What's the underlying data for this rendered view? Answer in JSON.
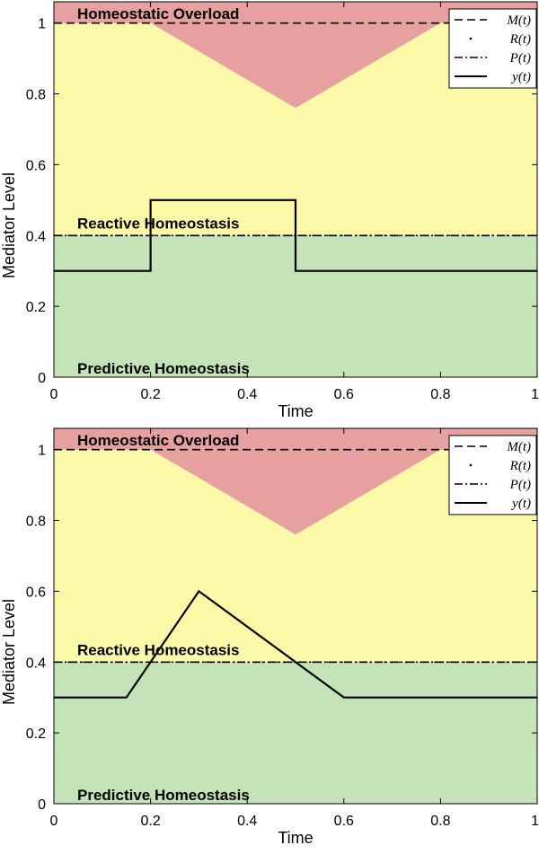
{
  "figure": {
    "background": "#ffffff",
    "colors": {
      "overload": "#e6a0a0",
      "reactive": "#fbf8a8",
      "predictive": "#c4e3b8",
      "line": "#000000"
    }
  },
  "chart_data": [
    {
      "type": "line",
      "xlabel": "Time",
      "ylabel": "Mediator Level",
      "xlim": [
        0,
        1
      ],
      "ylim": [
        0,
        1.06
      ],
      "xticks": [
        0,
        0.2,
        0.4,
        0.6,
        0.8,
        1
      ],
      "xtick_labels": [
        "0",
        "0.2",
        "0.4",
        "0.6",
        "0.8",
        "1"
      ],
      "yticks": [
        0,
        0.2,
        0.4,
        0.6,
        0.8,
        1
      ],
      "ytick_labels": [
        "0",
        "0.2",
        "0.4",
        "0.6",
        "0.8",
        "1"
      ],
      "regions": [
        {
          "name": "Homeostatic Overload",
          "color": "#e6a0a0"
        },
        {
          "name": "Reactive Homeostasis",
          "color": "#fbf8a8"
        },
        {
          "name": "Predictive Homeostasis",
          "color": "#c4e3b8"
        }
      ],
      "legend_position": "top-right",
      "series": [
        {
          "name": "M(t)",
          "style": "dashed",
          "x": [
            0,
            1
          ],
          "y": [
            1,
            1
          ]
        },
        {
          "name": "R(t)",
          "style": "dotted",
          "x": [
            0,
            1
          ],
          "y": [
            0.4,
            0.4
          ]
        },
        {
          "name": "P(t)",
          "style": "dashdot",
          "x": [
            0,
            1
          ],
          "y": [
            0.4,
            0.4
          ]
        },
        {
          "name": "y(t)",
          "style": "solid",
          "x": [
            0,
            0.2,
            0.2,
            0.5,
            0.5,
            1
          ],
          "y": [
            0.3,
            0.3,
            0.5,
            0.5,
            0.3,
            0.3
          ]
        }
      ],
      "overload_boundary": {
        "x": [
          0,
          0.2,
          0.5,
          0.8,
          1
        ],
        "y": [
          1,
          1,
          0.76,
          1,
          1
        ]
      }
    },
    {
      "type": "line",
      "xlabel": "Time",
      "ylabel": "Mediator Level",
      "xlim": [
        0,
        1
      ],
      "ylim": [
        0,
        1.06
      ],
      "xticks": [
        0,
        0.2,
        0.4,
        0.6,
        0.8,
        1
      ],
      "xtick_labels": [
        "0",
        "0.2",
        "0.4",
        "0.6",
        "0.8",
        "1"
      ],
      "yticks": [
        0,
        0.2,
        0.4,
        0.6,
        0.8,
        1
      ],
      "ytick_labels": [
        "0",
        "0.2",
        "0.4",
        "0.6",
        "0.8",
        "1"
      ],
      "regions": [
        {
          "name": "Homeostatic Overload",
          "color": "#e6a0a0"
        },
        {
          "name": "Reactive Homeostasis",
          "color": "#fbf8a8"
        },
        {
          "name": "Predictive Homeostasis",
          "color": "#c4e3b8"
        }
      ],
      "legend_position": "top-right",
      "series": [
        {
          "name": "M(t)",
          "style": "dashed",
          "x": [
            0,
            1
          ],
          "y": [
            1,
            1
          ]
        },
        {
          "name": "R(t)",
          "style": "dotted",
          "x": [
            0,
            1
          ],
          "y": [
            0.4,
            0.4
          ]
        },
        {
          "name": "P(t)",
          "style": "dashdot",
          "x": [
            0,
            1
          ],
          "y": [
            0.4,
            0.4
          ]
        },
        {
          "name": "y(t)",
          "style": "solid",
          "x": [
            0,
            0.15,
            0.3,
            0.6,
            1
          ],
          "y": [
            0.3,
            0.3,
            0.6,
            0.3,
            0.3
          ]
        }
      ],
      "overload_boundary": {
        "x": [
          0,
          0.2,
          0.5,
          0.8,
          1
        ],
        "y": [
          1,
          1,
          0.76,
          1,
          1
        ]
      }
    }
  ]
}
